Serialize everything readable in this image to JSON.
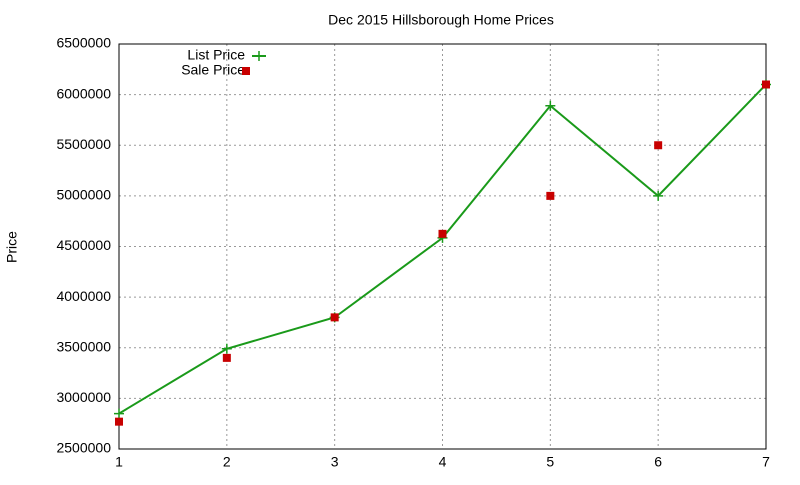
{
  "chart_data": {
    "type": "line",
    "title": "Dec 2015 Hillsborough Home Prices",
    "y_label": "Price",
    "x": [
      1,
      2,
      3,
      4,
      5,
      6,
      7
    ],
    "series": [
      {
        "name": "List Price",
        "color": "#1a9a1a",
        "style": "linespoints",
        "values": [
          2850000,
          3490000,
          3800000,
          4585000,
          5890000,
          5000000,
          6100000
        ]
      },
      {
        "name": "Sale Price",
        "color": "#c80000",
        "style": "points",
        "values": [
          2770000,
          3400000,
          3800000,
          4625000,
          5000000,
          5500000,
          6100000
        ]
      }
    ],
    "xlim": [
      1,
      7
    ],
    "xticks": [
      1,
      2,
      3,
      4,
      5,
      6,
      7
    ],
    "ylim": [
      2500000,
      6500000
    ],
    "yticks": [
      2500000,
      3000000,
      3500000,
      4000000,
      4500000,
      5000000,
      5500000,
      6000000,
      6500000
    ],
    "grid": true,
    "legend": "top-left"
  }
}
